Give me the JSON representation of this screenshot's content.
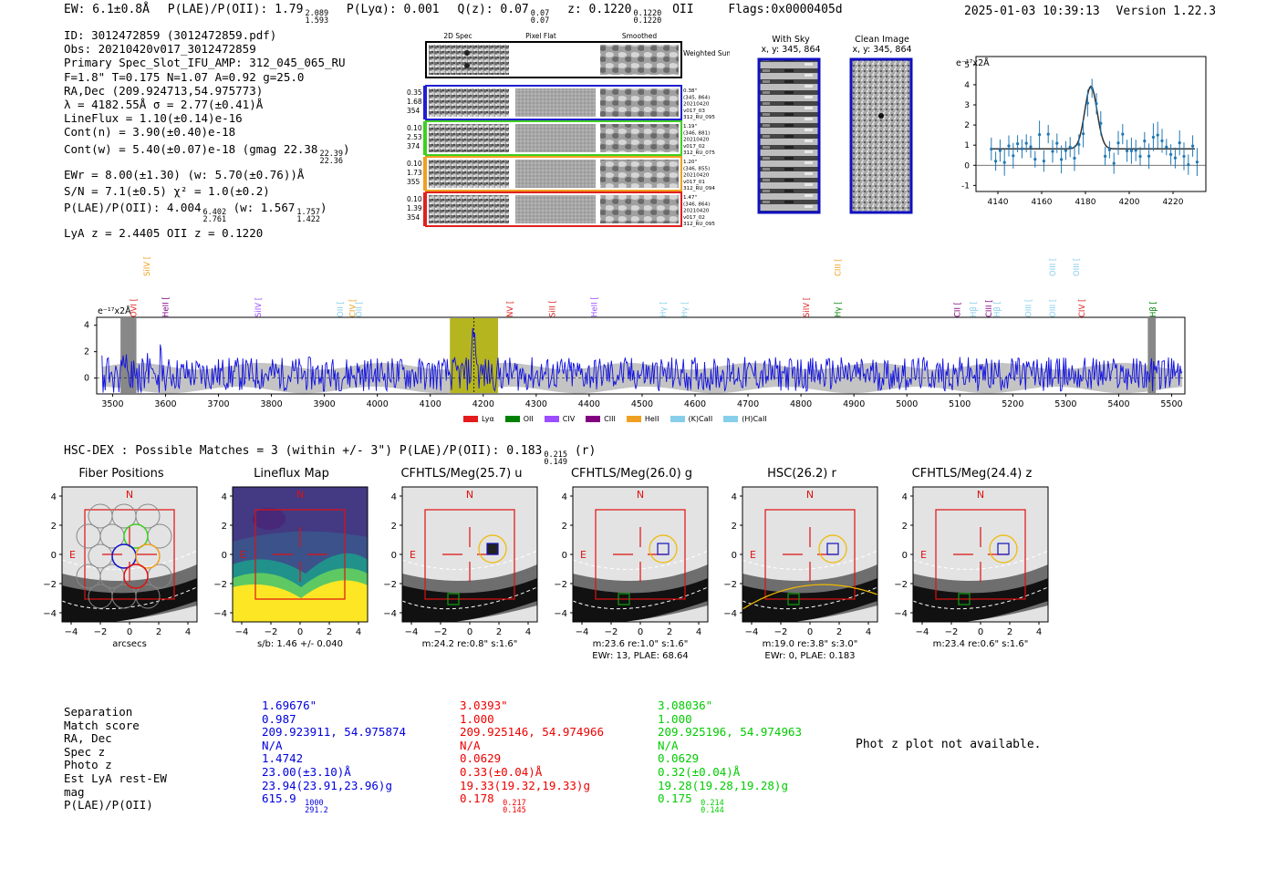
{
  "header": {
    "ew": "EW: 6.1±0.8Å",
    "plae_label": "P(LAE)/P(OII): 1.79",
    "plae_hi": "2.089",
    "plae_lo": "1.593",
    "plya": "P(Lyα): 0.001",
    "qz_label": "Q(z): 0.07",
    "qz_hi": "0.07",
    "qz_lo": "0.07",
    "z_label": "z: 0.1220",
    "z_hi": "0.1220",
    "z_lo": "0.1220",
    "z_line": "OII",
    "flags": "Flags:0x0000405d",
    "timestamp": "2025-01-03 10:39:13",
    "version": "Version 1.22.3"
  },
  "info": {
    "id": "ID: 3012472859 (3012472859.pdf)",
    "obs": "Obs: 20210420v017_3012472859",
    "primary": "Primary Spec_Slot_IFU_AMP: 312_045_065_RU",
    "fwhm": "F=1.8\"  T=0.175  N=1.07  A=0.92  g=25.0",
    "radec": "RA,Dec (209.924713,54.975773)",
    "lambda": "λ = 4182.55Å  σ = 2.77(±0.41)Å",
    "lineflux": "LineFlux = 1.10(±0.14)e-16",
    "contn": "Cont(n) = 3.90(±0.40)e-18",
    "contw": "Cont(w) = 5.40(±0.07)e-18 (gmag 22.38",
    "contw_hi": "22.39",
    "contw_lo": "22.36",
    "ewr": "EWr = 8.00(±1.30) (w: 5.70(±0.76))Å",
    "sn": "S/N = 7.1(±0.5)  χ² = 1.0(±0.2)",
    "plae": "P(LAE)/P(OII): 4.004",
    "plae_hi": "6.402",
    "plae_lo": "2.761",
    "plae_w": "(w: 1.567",
    "plae_w_hi": "1.757",
    "plae_w_lo": "1.422",
    "lya_z": "LyA z = 2.4405   OII z = 0.1220"
  },
  "cutouts": {
    "col_headers": [
      "2D Spec",
      "Pixel Flat",
      "Smoothed"
    ],
    "weighted_sum": "Weighted Sum",
    "rows": [
      {
        "vals": [
          "0.35",
          "1.68",
          "354"
        ],
        "meta": [
          "0.38\"",
          "(345, 864)",
          "20210420",
          "v017_03",
          "312_RU_095"
        ],
        "color": "#1f1fd0"
      },
      {
        "vals": [
          "0.10",
          "2.53",
          "374"
        ],
        "meta": [
          "1.19\"",
          "(346, 881)",
          "20210420",
          "v017_02",
          "312_RU_075"
        ],
        "color": "#3fd020"
      },
      {
        "vals": [
          "0.10",
          "1.73",
          "355"
        ],
        "meta": [
          "1.20\"",
          "(346, 855)",
          "20210420",
          "v017_01",
          "312_RU_094"
        ],
        "color": "#f0a020"
      },
      {
        "vals": [
          "0.10",
          "1.39",
          "354"
        ],
        "meta": [
          "1.47\"",
          "(346, 864)",
          "20210420",
          "v017_02",
          "312_RU_095"
        ],
        "color": "#e02020"
      }
    ]
  },
  "sky": {
    "with_sky_title": "With Sky",
    "with_sky_xy": "x, y: 345, 864",
    "clean_title": "Clean Image",
    "clean_xy": "x, y: 345, 864"
  },
  "fit_plot": {
    "ylabel": "e⁻¹⁷x2Å",
    "xticks": [
      "4140",
      "4160",
      "4180",
      "4200",
      "4220"
    ],
    "yticks": [
      "-1",
      "0",
      "1",
      "2",
      "3",
      "4",
      "5"
    ]
  },
  "spectrum": {
    "ylabel": "e⁻¹⁷x2Å",
    "xticks": [
      "3500",
      "3600",
      "3700",
      "3800",
      "3900",
      "4000",
      "4100",
      "4200",
      "4300",
      "4400",
      "4500",
      "4600",
      "4700",
      "4800",
      "4900",
      "5000",
      "5100",
      "5200",
      "5300",
      "5400",
      "5500"
    ],
    "yticks": [
      "0",
      "2",
      "4"
    ],
    "lines": [
      {
        "name": "OVI",
        "color": "#e02020",
        "x": 3540,
        "row": 2
      },
      {
        "name": "SiIV",
        "color": "#f0a020",
        "x": 3565,
        "row": 0
      },
      {
        "name": "HeII",
        "color": "#800080",
        "x": 3600,
        "row": 2
      },
      {
        "name": "SiIV",
        "color": "#9b4dff",
        "x": 3775,
        "row": 2
      },
      {
        "name": "OII",
        "color": "#87ceeb",
        "x": 3930,
        "row": 2
      },
      {
        "name": "CIV",
        "color": "#f0a020",
        "x": 3953,
        "row": 2
      },
      {
        "name": "OII",
        "color": "#87ceeb",
        "x": 3965,
        "row": 2
      },
      {
        "name": "NV",
        "color": "#e02020",
        "x": 4250,
        "row": 2
      },
      {
        "name": "SiII",
        "color": "#e02020",
        "x": 4330,
        "row": 2
      },
      {
        "name": "HeII",
        "color": "#9b4dff",
        "x": 4410,
        "row": 2
      },
      {
        "name": "Hγ",
        "color": "#87ceeb",
        "x": 4540,
        "row": 2
      },
      {
        "name": "Hγ",
        "color": "#87ceeb",
        "x": 4580,
        "row": 2
      },
      {
        "name": "SiIV",
        "color": "#e02020",
        "x": 4810,
        "row": 2
      },
      {
        "name": "CIII",
        "color": "#f0a020",
        "x": 4870,
        "row": 0
      },
      {
        "name": "Hγ",
        "color": "#008000",
        "x": 4870,
        "row": 2
      },
      {
        "name": "CII",
        "color": "#800080",
        "x": 5095,
        "row": 2
      },
      {
        "name": "Hβ",
        "color": "#87ceeb",
        "x": 5125,
        "row": 2
      },
      {
        "name": "CIII",
        "color": "#800080",
        "x": 5155,
        "row": 2
      },
      {
        "name": "Hβ",
        "color": "#87ceeb",
        "x": 5170,
        "row": 2
      },
      {
        "name": "OIII",
        "color": "#87ceeb",
        "x": 5230,
        "row": 2
      },
      {
        "name": "OIII",
        "color": "#87ceeb",
        "x": 5275,
        "row": 0
      },
      {
        "name": "OIII",
        "color": "#87ceeb",
        "x": 5275,
        "row": 2
      },
      {
        "name": "OIII",
        "color": "#87ceeb",
        "x": 5320,
        "row": 0
      },
      {
        "name": "CIV",
        "color": "#e02020",
        "x": 5330,
        "row": 2
      },
      {
        "name": "Hβ",
        "color": "#008000",
        "x": 5465,
        "row": 2
      }
    ],
    "legend": [
      {
        "label": "Lyα",
        "color": "#e41a1c"
      },
      {
        "label": "OII",
        "color": "#008000"
      },
      {
        "label": "CIV",
        "color": "#9b4dff"
      },
      {
        "label": "CIII",
        "color": "#800080"
      },
      {
        "label": "HeII",
        "color": "#f0a020"
      },
      {
        "label": "(K)CaII",
        "color": "#87ceeb"
      },
      {
        "label": "(H)CaII",
        "color": "#87ceeb"
      }
    ]
  },
  "hsc": {
    "line": "HSC-DEX : Possible Matches = 3 (within +/- 3\")  P(LAE)/P(OII): 0.183",
    "hi": "0.215",
    "lo": "0.149",
    "tail": "(r)"
  },
  "panels": [
    {
      "title": "Fiber Positions",
      "foot1": "arcsecs",
      "foot2": ""
    },
    {
      "title": "Lineflux Map",
      "foot1": "s/b: 1.46 +/- 0.040",
      "foot2": ""
    },
    {
      "title": "CFHTLS/Meg(25.7) u",
      "foot1": "m:24.2  re:0.8\"  s:1.6\"",
      "foot2": ""
    },
    {
      "title": "CFHTLS/Meg(26.0) g",
      "foot1": "m:23.6  re:1.0\"  s:1.6\"",
      "foot2": "EWr: 13, PLAE: 68.64"
    },
    {
      "title": "HSC(26.2) r",
      "foot1": "m:19.0  re:3.8\"  s:3.0\"",
      "foot2": "EWr: 0, PLAE: 0.183"
    },
    {
      "title": "CFHTLS/Meg(24.4) z",
      "foot1": "m:23.4  re:0.6\"  s:1.6\"",
      "foot2": ""
    }
  ],
  "panel_ticks": {
    "x": [
      "−4",
      "−2",
      "0",
      "2",
      "4"
    ],
    "y": [
      "4",
      "2",
      "0",
      "−2",
      "−4"
    ],
    "N": "N",
    "E": "E"
  },
  "bottom_table": {
    "labels": [
      "Separation",
      "Match score",
      "RA, Dec",
      "Spec z",
      "Photo z",
      "Est LyA rest-EW",
      "mag",
      "P(LAE)/P(OII)"
    ],
    "columns": [
      {
        "color": "#0000dd",
        "values": [
          "1.69676\"",
          "0.987",
          "209.923911, 54.975874",
          "N/A",
          "1.4742",
          "23.00(±3.10)Å",
          "23.94(23.91,23.96)g",
          "615.9"
        ],
        "plae_hi": "1000",
        "plae_lo": "291.2"
      },
      {
        "color": "#ee0000",
        "values": [
          "3.0393\"",
          "1.000",
          "209.925146, 54.974966",
          "N/A",
          "0.0629",
          "0.33(±0.04)Å",
          "19.33(19.32,19.33)g",
          "0.178"
        ],
        "plae_hi": "0.217",
        "plae_lo": "0.145"
      },
      {
        "color": "#00cc00",
        "values": [
          "3.08036\"",
          "1.000",
          "209.925196, 54.974963",
          "N/A",
          "0.0629",
          "0.32(±0.04)Å",
          "19.28(19.28,19.28)g",
          "0.175"
        ],
        "plae_hi": "0.214",
        "plae_lo": "0.144"
      }
    ],
    "photz_note": "Phot z plot not available."
  }
}
